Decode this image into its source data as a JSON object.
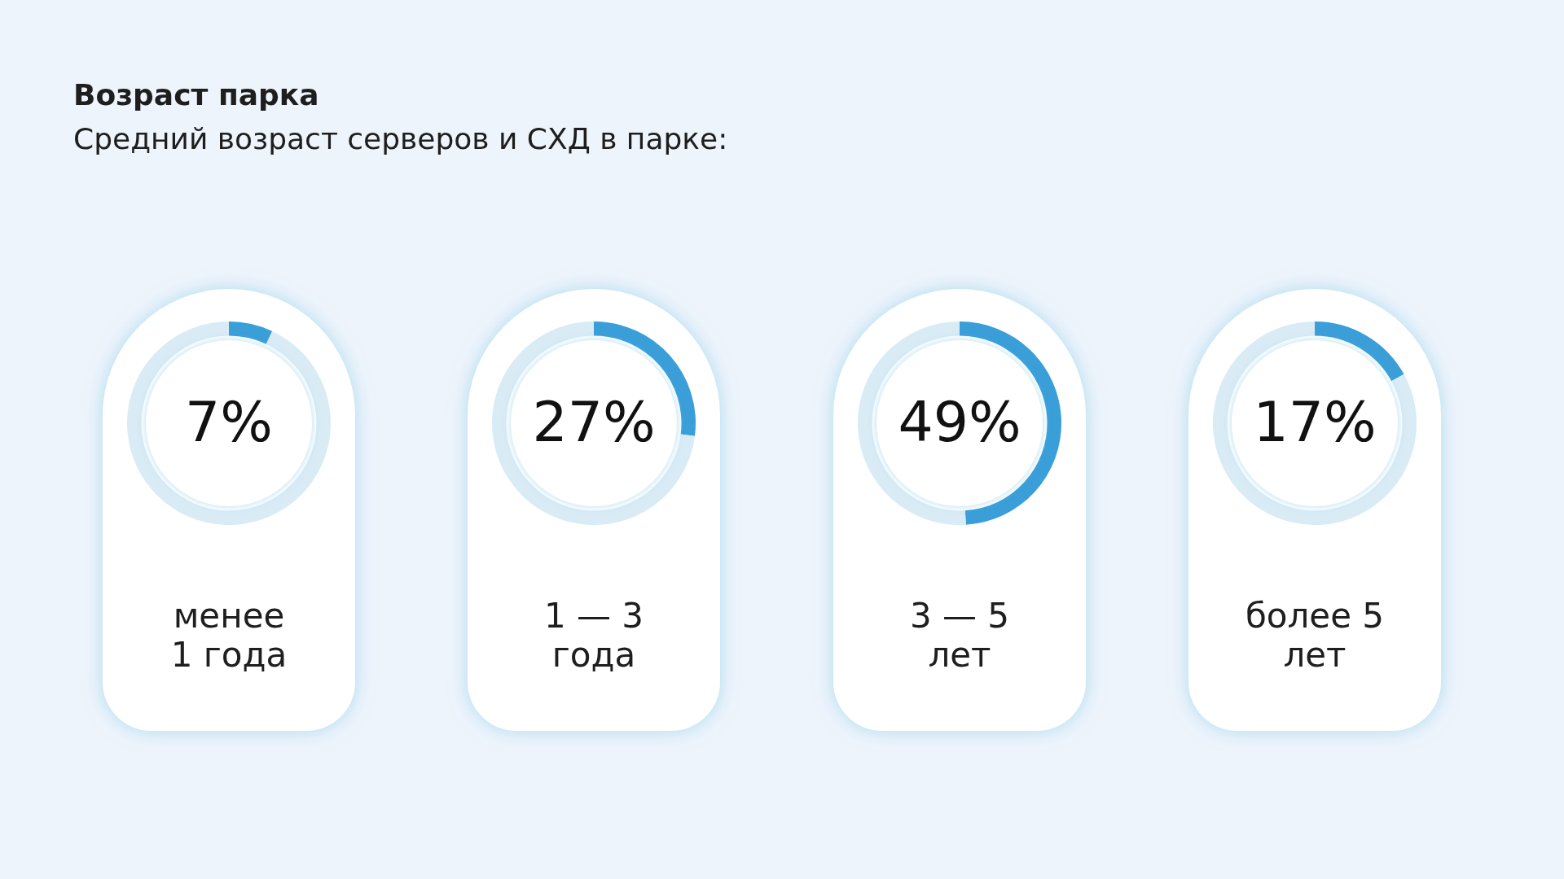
{
  "chart_data": [
    {
      "type": "donut",
      "title": "Возраст парка",
      "subtitle": "Средний возраст серверов и СХД в парке:",
      "xlabel": "менее 1 года",
      "categories": [
        null,
        null
      ],
      "values": [
        7,
        93
      ],
      "colors": [
        "#3a9fd8",
        "#d9ebf5"
      ],
      "value_labels": [
        "7%",
        null
      ],
      "legend": false
    },
    {
      "type": "donut",
      "xlabel": "1 — 3 года",
      "categories": [
        null,
        null
      ],
      "values": [
        27,
        73
      ],
      "colors": [
        "#3a9fd8",
        "#d9ebf5"
      ],
      "value_labels": [
        "27%",
        null
      ],
      "legend": false
    },
    {
      "type": "donut",
      "xlabel": "3 — 5 лет",
      "categories": [
        null,
        null
      ],
      "values": [
        49,
        51
      ],
      "colors": [
        "#3a9fd8",
        "#d9ebf5"
      ],
      "value_labels": [
        "49%",
        null
      ],
      "legend": false
    },
    {
      "type": "donut",
      "xlabel": "более 5 лет",
      "categories": [
        null,
        null
      ],
      "values": [
        17,
        83
      ],
      "colors": [
        "#3a9fd8",
        "#d9ebf5"
      ],
      "value_labels": [
        "17%",
        null
      ],
      "legend": false
    }
  ]
}
